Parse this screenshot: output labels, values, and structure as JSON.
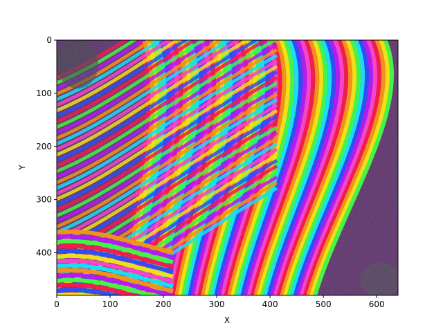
{
  "chart_data": {
    "type": "heatmap",
    "title": "",
    "xlabel": "X",
    "ylabel": "Y",
    "xlim": [
      0,
      640
    ],
    "ylim": [
      480,
      0
    ],
    "y_inverted": true,
    "x_ticks": [
      0,
      100,
      200,
      300,
      400,
      500,
      600
    ],
    "y_ticks": [
      0,
      100,
      200,
      300,
      400
    ],
    "grid": false,
    "legend": "none",
    "colormap": "hsv-cyclic",
    "description_values": {
      "content": "wrapped-phase interferogram image, 640 x 480 pixels",
      "palette": [
        "#ff0040",
        "#ff8c00",
        "#ffe600",
        "#33ff33",
        "#00e5ff",
        "#1a3cff",
        "#b400ff",
        "#ff33cc"
      ]
    }
  }
}
